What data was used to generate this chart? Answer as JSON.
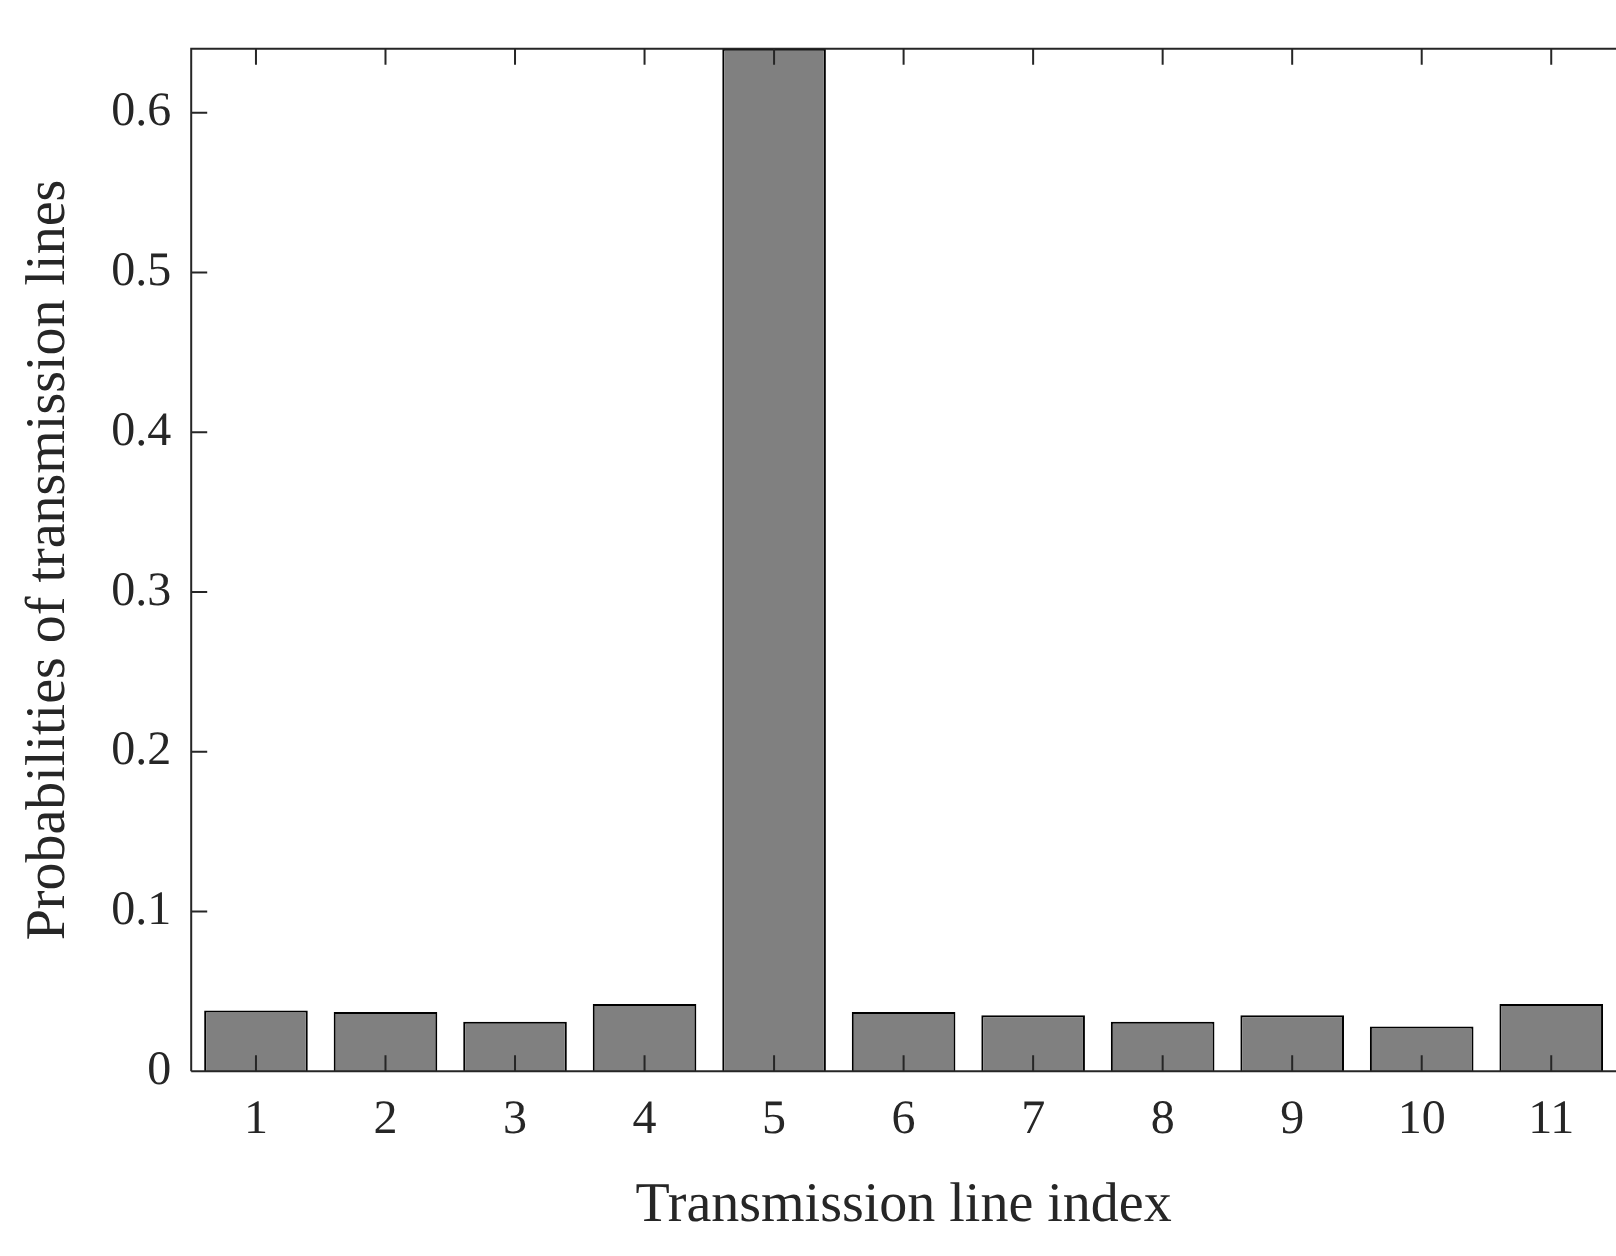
{
  "chart_data": {
    "type": "bar",
    "xlabel": "Transmission line index",
    "ylabel": "Probabilities of transmission lines",
    "categories": [
      "1",
      "2",
      "3",
      "4",
      "5",
      "6",
      "7",
      "8",
      "9",
      "10",
      "11"
    ],
    "values": [
      0.038,
      0.037,
      0.031,
      0.042,
      0.64,
      0.037,
      0.035,
      0.031,
      0.035,
      0.028,
      0.042
    ],
    "color": "#808080",
    "ylim": [
      0,
      0.64
    ],
    "yticks": [
      0,
      0.1,
      0.2,
      0.3,
      0.4,
      0.5,
      0.6
    ],
    "grid": false,
    "legend": false
  }
}
